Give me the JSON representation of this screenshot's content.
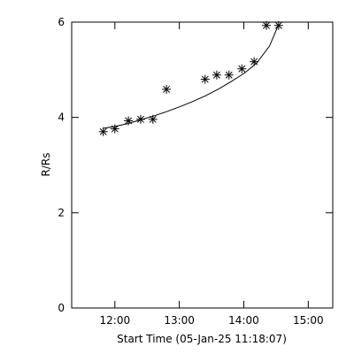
{
  "chart_data": {
    "type": "scatter",
    "xlabel": "Start Time (05-Jan-25 11:18:07)",
    "ylabel": "R/Rs",
    "xlim": [
      11.33,
      15.38
    ],
    "ylim": [
      0,
      6
    ],
    "xticks": [
      {
        "value": 12,
        "label": "12:00"
      },
      {
        "value": 13,
        "label": "13:00"
      },
      {
        "value": 14,
        "label": "14:00"
      },
      {
        "value": 15,
        "label": "15:00"
      }
    ],
    "yticks": [
      0,
      2,
      4,
      6
    ],
    "color": "#000000",
    "points": {
      "x": [
        11.82,
        12.0,
        12.21,
        12.4,
        12.59,
        12.8,
        13.4,
        13.58,
        13.77,
        13.97,
        14.16,
        14.35,
        14.54
      ],
      "y": [
        3.7,
        3.76,
        3.93,
        3.96,
        3.96,
        4.59,
        4.8,
        4.89,
        4.89,
        5.02,
        5.17,
        5.93,
        5.93
      ]
    },
    "fit": {
      "x": [
        11.82,
        12.0,
        12.2,
        12.4,
        12.6,
        12.8,
        13.0,
        13.2,
        13.4,
        13.6,
        13.8,
        14.0,
        14.2,
        14.4,
        14.54
      ],
      "y": [
        3.77,
        3.81,
        3.87,
        3.95,
        4.03,
        4.12,
        4.22,
        4.33,
        4.45,
        4.59,
        4.75,
        4.92,
        5.14,
        5.5,
        5.95
      ]
    }
  }
}
